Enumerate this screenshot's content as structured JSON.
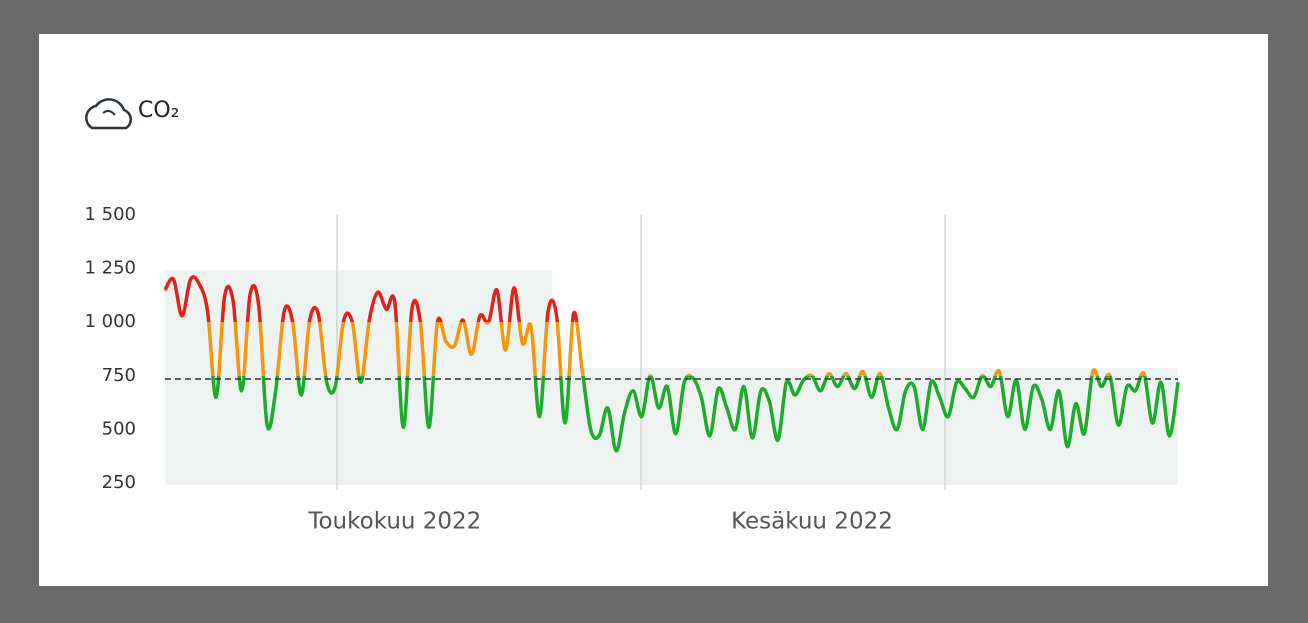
{
  "chart_data": {
    "type": "line",
    "title": "CO₂",
    "categories": [
      null,
      null,
      null,
      null,
      null,
      null,
      null,
      null,
      null,
      null,
      null,
      null,
      null,
      null,
      null,
      null,
      null,
      null,
      null,
      null,
      null,
      null,
      null,
      null,
      null,
      null,
      null,
      "Toukokuu 2022",
      null,
      null,
      null,
      null,
      null,
      null,
      null,
      null,
      null,
      null,
      null,
      null,
      null,
      null,
      null,
      null,
      null,
      null,
      null,
      null,
      null,
      null,
      null,
      null,
      null,
      null,
      null,
      null,
      null,
      null,
      null,
      null,
      null,
      null,
      null,
      null,
      null,
      null,
      null,
      null,
      null,
      null,
      null,
      null,
      null,
      null,
      null,
      null,
      "Kesäkuu 2022",
      null,
      null,
      null,
      null,
      null,
      null,
      null,
      null,
      null,
      null,
      null,
      null,
      null,
      null,
      null,
      null,
      null,
      null,
      null,
      null,
      null,
      null,
      null,
      null,
      null,
      null,
      null,
      null,
      null,
      null,
      null,
      null,
      null,
      null,
      null,
      null,
      null,
      null,
      null,
      null,
      null,
      null,
      null
    ],
    "series": [
      {
        "values": [
          1150,
          1200,
          1030,
          1200,
          1180,
          1050,
          650,
          1120,
          1100,
          680,
          1130,
          1080,
          520,
          680,
          1050,
          1000,
          660,
          1010,
          1040,
          720,
          700,
          1010,
          1000,
          720,
          1010,
          1140,
          1060,
          1090,
          510,
          1060,
          1000,
          510,
          1000,
          910,
          890,
          1010,
          850,
          1030,
          1000,
          1150,
          870,
          1160,
          900,
          980,
          560,
          1050,
          1030,
          530,
          1040,
          780,
          500,
          470,
          600,
          400,
          580,
          680,
          560,
          750,
          600,
          700,
          480,
          720,
          740,
          650,
          470,
          690,
          600,
          500,
          700,
          460,
          680,
          630,
          450,
          720,
          660,
          730,
          750,
          680,
          760,
          700,
          760,
          690,
          770,
          650,
          760,
          600,
          500,
          680,
          700,
          500,
          720,
          650,
          560,
          720,
          690,
          650,
          750,
          700,
          770,
          560,
          730,
          500,
          700,
          640,
          500,
          680,
          420,
          620,
          480,
          770,
          700,
          750,
          520,
          700,
          680,
          760,
          530,
          720,
          470,
          720
        ],
        "thresholds": [
          1000,
          750
        ],
        "colors": [
          "#e3211a",
          "#f5960f",
          "#1cab2b"
        ]
      }
    ],
    "reference_line": 735,
    "ylim": [
      250,
      1500
    ],
    "yticks": [
      {
        "value": 250,
        "label": "250"
      },
      {
        "value": 500,
        "label": "500"
      },
      {
        "value": 750,
        "label": "750"
      },
      {
        "value": 1000,
        "label": "1 000"
      },
      {
        "value": 1250,
        "label": "1 250"
      },
      {
        "value": 1500,
        "label": "1 500"
      }
    ]
  }
}
